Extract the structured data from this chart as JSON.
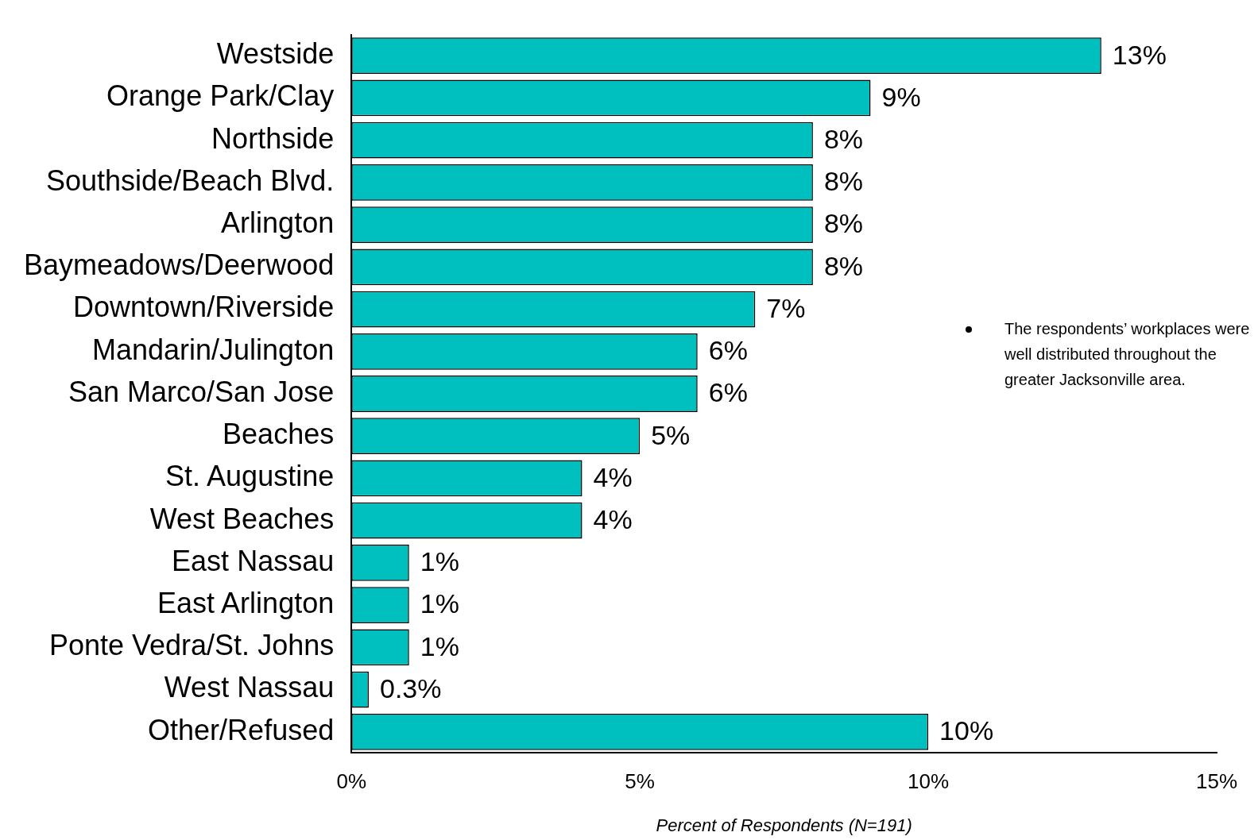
{
  "chart_data": {
    "type": "bar",
    "orientation": "horizontal",
    "xlabel": "Percent of Respondents (N=191)",
    "categories": [
      "Westside",
      "Orange Park/Clay",
      "Northside",
      "Southside/Beach Blvd.",
      "Arlington",
      "Baymeadows/Deerwood",
      "Downtown/Riverside",
      "Mandarin/Julington",
      "San Marco/San Jose",
      "Beaches",
      "St. Augustine",
      "West Beaches",
      "East Nassau",
      "East Arlington",
      "Ponte Vedra/St. Johns",
      "West Nassau",
      "Other/Refused"
    ],
    "values": [
      13,
      9,
      8,
      8,
      8,
      8,
      7,
      6,
      6,
      5,
      4,
      4,
      1,
      1,
      1,
      0.3,
      10
    ],
    "value_labels": [
      "13%",
      "9%",
      "8%",
      "8%",
      "8%",
      "8%",
      "7%",
      "6%",
      "6%",
      "5%",
      "4%",
      "4%",
      "1%",
      "1%",
      "1%",
      "0.3%",
      "10%"
    ],
    "color": "#00bfbf",
    "xlim": [
      0,
      15
    ],
    "xticks": [
      {
        "value": 0,
        "label": "0%"
      },
      {
        "value": 5,
        "label": "5%"
      },
      {
        "value": 10,
        "label": "10%"
      },
      {
        "value": 15,
        "label": "15%"
      }
    ],
    "grid": false,
    "legend": false,
    "annotations": [
      "The respondents’ workplaces were well distributed throughout the greater Jacksonville area."
    ]
  }
}
